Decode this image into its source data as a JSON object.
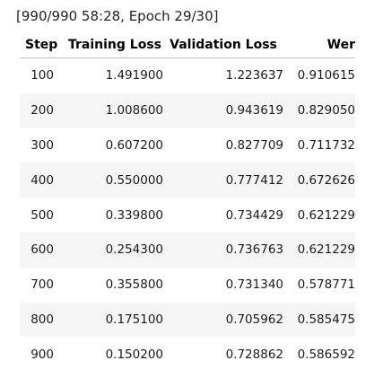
{
  "progress": {
    "text": "[990/990 58:28, Epoch 29/30]"
  },
  "table": {
    "headers": {
      "step": "Step",
      "training_loss": "Training Loss",
      "validation_loss": "Validation Loss",
      "wer": "Wer"
    },
    "rows": [
      {
        "step": "100",
        "training_loss": "1.491900",
        "validation_loss": "1.223637",
        "wer": "0.910615"
      },
      {
        "step": "200",
        "training_loss": "1.008600",
        "validation_loss": "0.943619",
        "wer": "0.829050"
      },
      {
        "step": "300",
        "training_loss": "0.607200",
        "validation_loss": "0.827709",
        "wer": "0.711732"
      },
      {
        "step": "400",
        "training_loss": "0.550000",
        "validation_loss": "0.777412",
        "wer": "0.672626"
      },
      {
        "step": "500",
        "training_loss": "0.339800",
        "validation_loss": "0.734429",
        "wer": "0.621229"
      },
      {
        "step": "600",
        "training_loss": "0.254300",
        "validation_loss": "0.736763",
        "wer": "0.621229"
      },
      {
        "step": "700",
        "training_loss": "0.355800",
        "validation_loss": "0.731340",
        "wer": "0.578771"
      },
      {
        "step": "800",
        "training_loss": "0.175100",
        "validation_loss": "0.705962",
        "wer": "0.585475"
      },
      {
        "step": "900",
        "training_loss": "0.150200",
        "validation_loss": "0.728862",
        "wer": "0.586592"
      }
    ]
  }
}
